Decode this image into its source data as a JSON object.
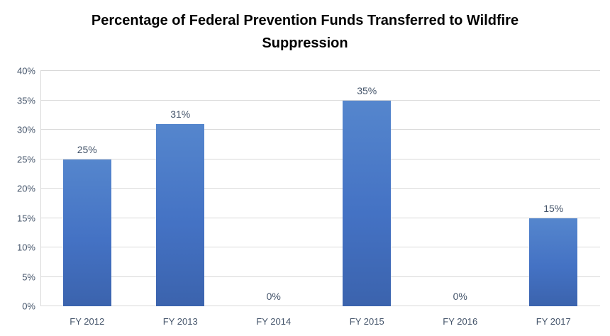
{
  "chart_data": {
    "type": "bar",
    "title": "Percentage of Federal Prevention Funds Transferred to Wildfire Suppression",
    "categories": [
      "FY 2012",
      "FY 2013",
      "FY 2014",
      "FY 2015",
      "FY 2016",
      "FY 2017"
    ],
    "values": [
      25,
      31,
      0,
      35,
      0,
      15
    ],
    "value_labels": [
      "25%",
      "31%",
      "0%",
      "35%",
      "0%",
      "15%"
    ],
    "xlabel": "",
    "ylabel": "",
    "ylim": [
      0,
      40
    ],
    "ytick_step": 5,
    "ytick_labels": [
      "0%",
      "5%",
      "10%",
      "15%",
      "20%",
      "25%",
      "30%",
      "35%",
      "40%"
    ],
    "grid": true,
    "legend_position": "none",
    "colors": {
      "bar_fill": "#4472C4",
      "bar_gradient_top": "#5586cd",
      "bar_gradient_bottom": "#3b63ad",
      "gridline": "#d9d9d9",
      "axis_text": "#44546A",
      "title_text": "#000000",
      "background": "#ffffff"
    }
  }
}
